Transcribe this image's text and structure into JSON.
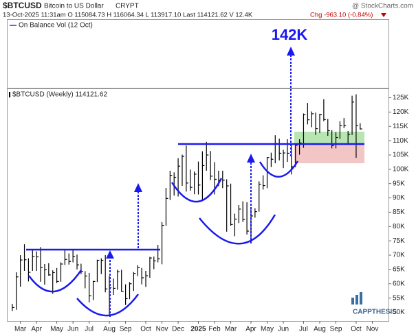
{
  "header": {
    "symbol": "$BTCUSD",
    "name": "Bitcoin to US Dollar",
    "exchange": "CRYPT",
    "source": "@ StockCharts.com",
    "quote": "13-Oct-2025 11:31am  O 115084.73  H 116064.34  L 113917.10  Last 114121.62  V 12.4K",
    "change": "Chg -963.10 (-0.84%)"
  },
  "chart_data": {
    "type": "ohlc",
    "indicator_label": "On Balance Vol (12 Oct)",
    "series_label": "$BTCUSD (Weekly) 114121.62",
    "annotation": "142K",
    "logo": "CAPPTHESIS",
    "color": "#000000",
    "ylim": [
      47,
      128
    ],
    "yticks": [
      {
        "value": 50,
        "label": "50K"
      },
      {
        "value": 55,
        "label": "55K"
      },
      {
        "value": 60,
        "label": "60K"
      },
      {
        "value": 65,
        "label": "65K"
      },
      {
        "value": 70,
        "label": "70K"
      },
      {
        "value": 75,
        "label": "75K"
      },
      {
        "value": 80,
        "label": "80K"
      },
      {
        "value": 85,
        "label": "85K"
      },
      {
        "value": 90,
        "label": "90K"
      },
      {
        "value": 95,
        "label": "95K"
      },
      {
        "value": 100,
        "label": "100K"
      },
      {
        "value": 105,
        "label": "105K"
      },
      {
        "value": 110,
        "label": "110K"
      },
      {
        "value": 115,
        "label": "115K"
      },
      {
        "value": 120,
        "label": "120K"
      },
      {
        "value": 125,
        "label": "125K"
      }
    ],
    "xlim": [
      -1,
      93
    ],
    "xticks": [
      {
        "value": 2,
        "label": "Mar"
      },
      {
        "value": 6,
        "label": "Apr"
      },
      {
        "value": 11,
        "label": "May"
      },
      {
        "value": 15,
        "label": "Jun"
      },
      {
        "value": 19,
        "label": "Jul"
      },
      {
        "value": 24,
        "label": "Aug"
      },
      {
        "value": 28,
        "label": "Sep"
      },
      {
        "value": 33,
        "label": "Oct"
      },
      {
        "value": 37,
        "label": "Nov"
      },
      {
        "value": 41,
        "label": "Dec"
      },
      {
        "value": 46,
        "label": "2025"
      },
      {
        "value": 50,
        "label": "Feb"
      },
      {
        "value": 54,
        "label": "Mar"
      },
      {
        "value": 59,
        "label": "Apr"
      },
      {
        "value": 63,
        "label": "May"
      },
      {
        "value": 67,
        "label": "Jun"
      },
      {
        "value": 72,
        "label": "Jul"
      },
      {
        "value": 76,
        "label": "Aug"
      },
      {
        "value": 80,
        "label": "Sep"
      },
      {
        "value": 85,
        "label": "Oct"
      },
      {
        "value": 89,
        "label": "Nov"
      }
    ],
    "highs": [
      53,
      64,
      70,
      73.8,
      68.9,
      71.7,
      71.3,
      72.8,
      66.9,
      67.2,
      64.7,
      65.5,
      67.5,
      71.9,
      70.6,
      71.9,
      70.2,
      67,
      64.4,
      63.8,
      61,
      68.4,
      68.9,
      70,
      62.7,
      61.8,
      64.9,
      64.9,
      59.8,
      60.6,
      64.1,
      66.5,
      65.5,
      64.5,
      69.4,
      69.5,
      73.6,
      81.5,
      93.5,
      99.5,
      98.9,
      103.9,
      105.1,
      108.3,
      99.9,
      99.2,
      102.7,
      106.3,
      109.6,
      106.4,
      102.5,
      99.5,
      99.5,
      96.5,
      95,
      84.5,
      87.5,
      88.8,
      88.5,
      86.1,
      86.4,
      95.8,
      97.9,
      104.2,
      105.8,
      111.9,
      110.7,
      106.8,
      110.5,
      108.9,
      108.5,
      110.5,
      119.5,
      123.2,
      120.2,
      119.8,
      119.4,
      124.5,
      117.6,
      113.7,
      113,
      116.8,
      117.9,
      113.4,
      125.7,
      126.2,
      116.1
    ],
    "lows": [
      50.5,
      50.9,
      59,
      64.5,
      60.8,
      64.5,
      64.5,
      60.7,
      59.7,
      62.8,
      56.5,
      60.2,
      60.7,
      66.6,
      66.7,
      67.5,
      65,
      63.4,
      58.4,
      53.5,
      54.3,
      60.6,
      63.4,
      57,
      49,
      56.1,
      57.9,
      57.2,
      52.6,
      54.6,
      57.5,
      62.7,
      59.8,
      58.9,
      62.1,
      65.1,
      67.5,
      66.8,
      80.3,
      89.3,
      90.8,
      90.5,
      94.2,
      92.2,
      92.5,
      91.3,
      91.2,
      89.3,
      99.5,
      96.2,
      91.2,
      94.1,
      93.4,
      78.2,
      80.3,
      76.6,
      81.2,
      81.6,
      77.2,
      74.5,
      83.1,
      85.2,
      92.9,
      93.4,
      100.8,
      102.1,
      103.1,
      100.4,
      102.6,
      98.2,
      100.8,
      105.1,
      107.5,
      115.7,
      114.7,
      112,
      112.7,
      116.8,
      111.7,
      107.3,
      107.3,
      110.6,
      114.4,
      108.6,
      112,
      104,
      113.9
    ],
    "closes": [
      51.7,
      62.4,
      68.3,
      68.4,
      64,
      69.6,
      69.4,
      65.7,
      64.9,
      63.1,
      63.9,
      60.8,
      66.9,
      68.5,
      67.8,
      69.6,
      66.6,
      64.3,
      62.7,
      55.8,
      60.8,
      68.2,
      68.2,
      58.2,
      58.7,
      58.4,
      64.2,
      57.3,
      54.8,
      60,
      63.6,
      65.6,
      62.1,
      62.8,
      69,
      68,
      68.7,
      80.4,
      89.8,
      97.9,
      97.2,
      101.1,
      104.5,
      95.2,
      93.7,
      98.3,
      94.5,
      101.3,
      105,
      97.6,
      96.5,
      96.1,
      96.2,
      94.2,
      80.7,
      82.6,
      86.1,
      82.4,
      78.4,
      83.7,
      85.2,
      94.8,
      94.3,
      104.1,
      103.5,
      109,
      105.6,
      105.7,
      105.6,
      100.9,
      108.4,
      109.2,
      119.1,
      117.3,
      119.4,
      114.2,
      119.2,
      117.4,
      113.5,
      108.3,
      111.1,
      115.3,
      115.3,
      112.2,
      123.5,
      115.2,
      114.1
    ]
  }
}
